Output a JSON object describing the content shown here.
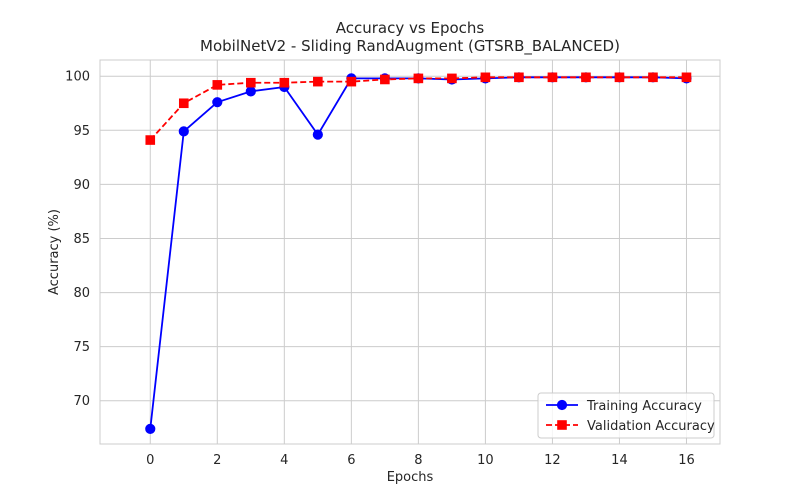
{
  "chart_data": {
    "type": "line",
    "title": "Accuracy vs Epochs",
    "subtitle": "MobilNetV2 - Sliding RandAugment (GTSRB_BALANCED)",
    "xlabel": "Epochs",
    "ylabel": "Accuracy (%)",
    "xlim": [
      -1.5,
      17.0
    ],
    "ylim": [
      66.0,
      101.5
    ],
    "x_ticks": [
      0,
      2,
      4,
      6,
      8,
      10,
      12,
      14,
      16
    ],
    "y_ticks": [
      70,
      75,
      80,
      85,
      90,
      95,
      100
    ],
    "grid": true,
    "legend_position": "lower-right",
    "x": [
      0,
      1,
      2,
      3,
      4,
      5,
      6,
      7,
      8,
      9,
      10,
      11,
      12,
      13,
      14,
      15,
      16
    ],
    "series": [
      {
        "name": "Training Accuracy",
        "color": "#0000ff",
        "line_style": "solid",
        "marker": "circle",
        "values": [
          67.4,
          94.9,
          97.6,
          98.6,
          99.0,
          94.6,
          99.8,
          99.8,
          99.8,
          99.7,
          99.8,
          99.9,
          99.9,
          99.9,
          99.9,
          99.9,
          99.8
        ]
      },
      {
        "name": "Validation Accuracy",
        "color": "#ff0000",
        "line_style": "dashed",
        "marker": "square",
        "values": [
          94.1,
          97.5,
          99.2,
          99.4,
          99.4,
          99.5,
          99.5,
          99.7,
          99.8,
          99.8,
          99.9,
          99.9,
          99.9,
          99.9,
          99.9,
          99.9,
          99.9
        ]
      }
    ]
  }
}
